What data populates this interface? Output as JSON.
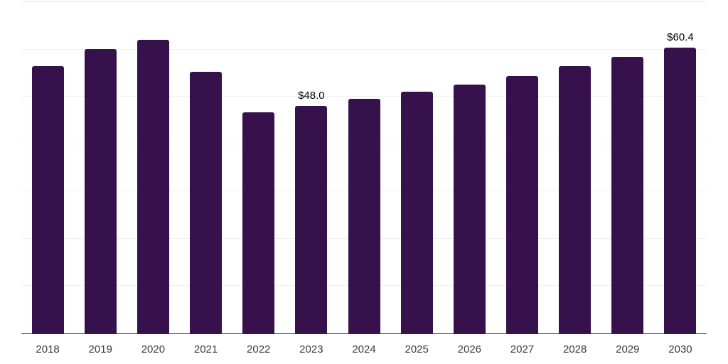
{
  "chart_data": {
    "type": "bar",
    "title": "",
    "xlabel": "",
    "ylabel": "",
    "categories": [
      "2018",
      "2019",
      "2020",
      "2021",
      "2022",
      "2023",
      "2024",
      "2025",
      "2026",
      "2027",
      "2028",
      "2029",
      "2030"
    ],
    "values": [
      56.5,
      60.1,
      62.0,
      55.3,
      46.7,
      48.0,
      49.6,
      51.1,
      52.6,
      54.4,
      56.5,
      58.4,
      60.4
    ],
    "value_labels": [
      "",
      "",
      "",
      "",
      "",
      "$48.0",
      "",
      "",
      "",
      "",
      "",
      "",
      "$60.4"
    ],
    "ylim": [
      0,
      70
    ],
    "grid_step": 10,
    "grid": "horizontal",
    "legend_position": "none",
    "y_tick_labels_visible": false,
    "colors": {
      "bar": "#36114b",
      "grid": "#f0f0f0",
      "grid_top": "#e7e7e7",
      "axis_line": "#2b2b2b",
      "value_label": "#000000",
      "tick_label": "#3b3b3b",
      "background": "#ffffff"
    }
  }
}
